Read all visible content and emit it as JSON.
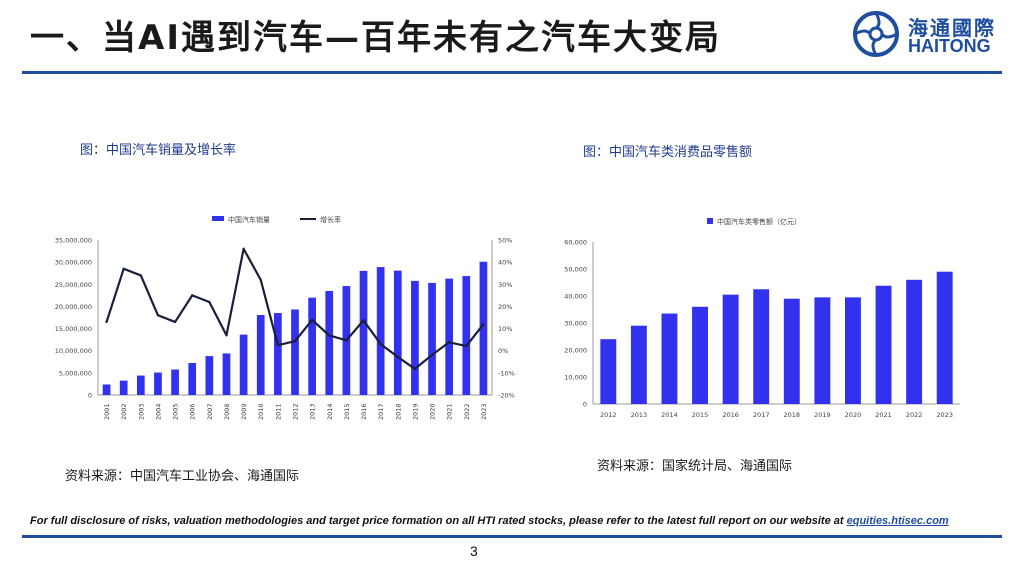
{
  "header": {
    "title": "一、当AI遇到汽车—百年未有之汽车大变局",
    "logo_cn": "海通國際",
    "logo_en": "HAITONG"
  },
  "colors": {
    "bar": "#3232ee",
    "line": "#1a1f3a",
    "brand": "#1f4e9e"
  },
  "left_panel": {
    "caption": "图：中国汽车销量及增长率",
    "source": "资料来源：中国汽车工业协会、海通国际"
  },
  "right_panel": {
    "caption": "图：中国汽车类消费品零售额",
    "source": "资料来源：国家统计局、海通国际"
  },
  "footer": {
    "disclaimer": "For full disclosure of risks, valuation methodologies and target price formation on all HTI rated stocks, please refer to the latest full report on our website at",
    "link": "equities.htisec.com",
    "page_number": "3"
  },
  "chart_data": [
    {
      "type": "bar",
      "legend_placement": "top-center",
      "categories": [
        "2001",
        "2002",
        "2003",
        "2004",
        "2005",
        "2006",
        "2007",
        "2008",
        "2009",
        "2010",
        "2011",
        "2012",
        "2013",
        "2014",
        "2015",
        "2016",
        "2017",
        "2018",
        "2019",
        "2020",
        "2021",
        "2022",
        "2023"
      ],
      "series": [
        {
          "name": "中国汽车销量",
          "type": "bar",
          "axis": "left",
          "values": [
            2370000,
            3250000,
            4390000,
            5070000,
            5760000,
            7220000,
            8790000,
            9380000,
            13640000,
            18060000,
            18510000,
            19310000,
            21980000,
            23490000,
            24600000,
            28030000,
            28880000,
            28080000,
            25770000,
            25310000,
            26280000,
            26860000,
            30090000
          ]
        },
        {
          "name": "增长率",
          "type": "line",
          "axis": "right",
          "values": [
            0.13,
            0.37,
            0.34,
            0.16,
            0.13,
            0.25,
            0.22,
            0.07,
            0.46,
            0.32,
            0.025,
            0.043,
            0.139,
            0.069,
            0.047,
            0.137,
            0.03,
            -0.028,
            -0.082,
            -0.019,
            0.038,
            0.021,
            0.12
          ]
        }
      ],
      "yticks_left": [
        "0",
        "5,000,000",
        "10,000,000",
        "15,000,000",
        "20,000,000",
        "25,000,000",
        "30,000,000",
        "35,000,000"
      ],
      "yticks_right": [
        "-20%",
        "-10%",
        "0%",
        "10%",
        "20%",
        "30%",
        "40%",
        "50%"
      ],
      "ylim_left": [
        0,
        35000000
      ],
      "ylim_right": [
        -0.2,
        0.5
      ]
    },
    {
      "type": "bar",
      "legend_placement": "top-center",
      "categories": [
        "2012",
        "2013",
        "2014",
        "2015",
        "2016",
        "2017",
        "2018",
        "2019",
        "2020",
        "2021",
        "2022",
        "2023"
      ],
      "series": [
        {
          "name": "中国汽车类零售额（亿元）",
          "values": [
            24000,
            29000,
            33500,
            36000,
            40500,
            42500,
            39000,
            39500,
            39500,
            43800,
            46000,
            49000
          ]
        }
      ],
      "yticks": [
        "0",
        "10,000",
        "20,000",
        "30,000",
        "40,000",
        "50,000",
        "60,000"
      ],
      "ylim": [
        0,
        60000
      ]
    }
  ]
}
